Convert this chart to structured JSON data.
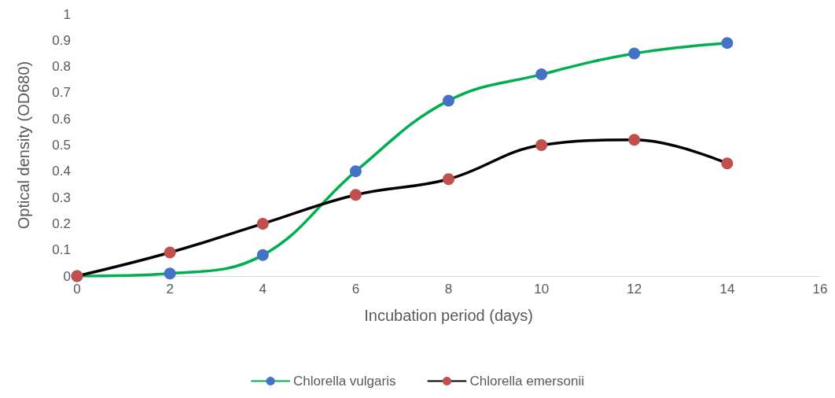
{
  "chart_data": {
    "type": "line",
    "xlabel": "Incubation period (days)",
    "ylabel": "Optical density (OD680)",
    "x": [
      0,
      2,
      4,
      6,
      8,
      10,
      12,
      14
    ],
    "series": [
      {
        "name": "Chlorella vulgaris",
        "color": "#00b050",
        "colors": [
          "#4472c4",
          "#4472c4",
          "#4472c4",
          "#4472c4",
          "#4472c4",
          "#4472c4",
          "#4472c4",
          "#4472c4"
        ],
        "values": [
          0,
          0.01,
          0.08,
          0.4,
          0.67,
          0.77,
          0.85,
          0.89
        ]
      },
      {
        "name": "Chlorella emersonii",
        "color": "#000000",
        "colors": [
          "#c0504d",
          "#c0504d",
          "#c0504d",
          "#c0504d",
          "#c0504d",
          "#c0504d",
          "#c0504d",
          "#c0504d"
        ],
        "values": [
          0,
          0.09,
          0.2,
          0.31,
          0.37,
          0.5,
          0.52,
          0.43
        ]
      }
    ],
    "xlim": [
      0,
      16
    ],
    "xticks": [
      0,
      2,
      4,
      6,
      8,
      10,
      12,
      14,
      16
    ],
    "ylim": [
      0,
      1
    ],
    "yticks": [
      0,
      0.1,
      0.2,
      0.3,
      0.4,
      0.5,
      0.6,
      0.7,
      0.8,
      0.9,
      1
    ],
    "grid": false,
    "legend": "bottom",
    "marker": "circle",
    "line_style": "solid"
  }
}
